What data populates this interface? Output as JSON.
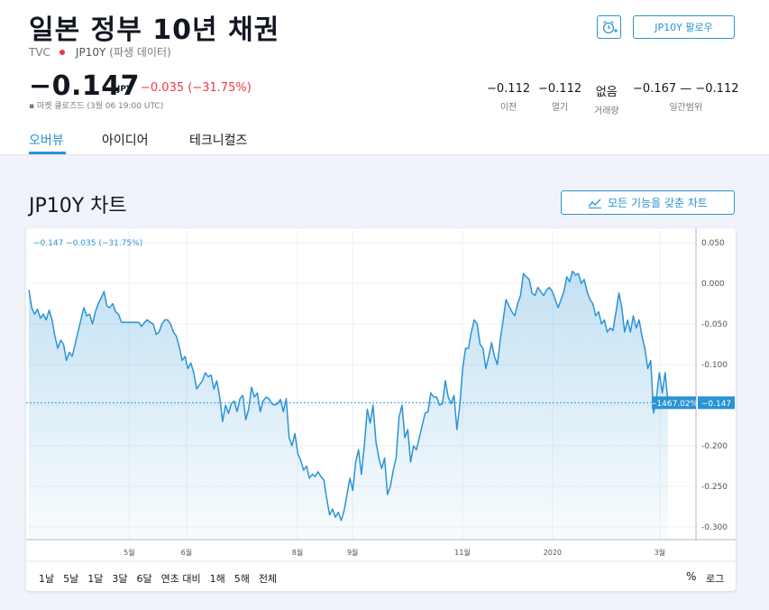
{
  "header": {
    "title": "일본 정부 10년 채권",
    "exchange": "TVC",
    "symbol": "JP10Y",
    "symbol_note": "(파생 데이터)",
    "follow_label": "JP10Y 팔로우",
    "price": "−0.147",
    "currency": "JPY",
    "change": "−0.035 (−31.75%)",
    "market_status": "▪ 마켓 클로즈드 (3월 06 19:00 UTC)",
    "stats": [
      {
        "value": "−0.112",
        "label": "이전"
      },
      {
        "value": "−0.112",
        "label": "열기"
      },
      {
        "value": "없음",
        "label": "거래량"
      },
      {
        "value": "−0.167 — −0.112",
        "label": "일간범위"
      }
    ]
  },
  "tabs": [
    {
      "label": "오버뷰",
      "active": true
    },
    {
      "label": "아이디어",
      "active": false
    },
    {
      "label": "테크니컬즈",
      "active": false
    }
  ],
  "chart_section": {
    "title": "JP10Y 차트",
    "full_chart_label": "모든 기능을 갖춘 차트",
    "legend": "−0.147  −0.035 (−31.75%)",
    "pct_badge": "−1467.02%",
    "last_badge": "−0.147",
    "pct_toggle": "%",
    "log_toggle": "로그",
    "ranges": [
      "1날",
      "5날",
      "1달",
      "3달",
      "6달",
      "연초 대비",
      "1해",
      "5해",
      "전체"
    ]
  },
  "chart_data": {
    "type": "area",
    "title": "",
    "xlabel": "",
    "ylabel": "",
    "ylim": [
      -0.31,
      0.055
    ],
    "yticks": [
      "0.050",
      "0.000",
      "-0.050",
      "-0.100",
      "-0.150",
      "-0.200",
      "-0.250",
      "-0.300"
    ],
    "ytick_values": [
      0.05,
      0.0,
      -0.05,
      -0.1,
      -0.15,
      -0.2,
      -0.25,
      -0.3
    ],
    "xticks": [
      {
        "label": "5월",
        "pos": 0.1505
      },
      {
        "label": "6월",
        "pos": 0.2363
      },
      {
        "label": "8월",
        "pos": 0.4027
      },
      {
        "label": "9월",
        "pos": 0.4854
      },
      {
        "label": "11월",
        "pos": 0.6499
      },
      {
        "label": "2020",
        "pos": 0.7849
      },
      {
        "label": "3월",
        "pos": 0.9457
      }
    ],
    "series": [
      {
        "values": [
          -0.008,
          -0.03,
          -0.038,
          -0.032,
          -0.043,
          -0.038,
          -0.045,
          -0.033,
          -0.045,
          -0.065,
          -0.08,
          -0.07,
          -0.075,
          -0.095,
          -0.085,
          -0.09,
          -0.075,
          -0.06,
          -0.045,
          -0.03,
          -0.04,
          -0.038,
          -0.05,
          -0.035,
          -0.025,
          -0.018,
          -0.01,
          -0.028,
          -0.03,
          -0.025,
          -0.035,
          -0.038,
          -0.048,
          -0.048,
          -0.048,
          -0.048,
          -0.048,
          -0.048,
          -0.048,
          -0.053,
          -0.048,
          -0.045,
          -0.048,
          -0.05,
          -0.063,
          -0.06,
          -0.05,
          -0.045,
          -0.045,
          -0.05,
          -0.06,
          -0.065,
          -0.078,
          -0.095,
          -0.09,
          -0.105,
          -0.098,
          -0.11,
          -0.13,
          -0.125,
          -0.12,
          -0.11,
          -0.115,
          -0.113,
          -0.13,
          -0.12,
          -0.14,
          -0.17,
          -0.15,
          -0.16,
          -0.148,
          -0.145,
          -0.158,
          -0.142,
          -0.138,
          -0.168,
          -0.155,
          -0.128,
          -0.14,
          -0.135,
          -0.158,
          -0.145,
          -0.14,
          -0.142,
          -0.148,
          -0.15,
          -0.148,
          -0.143,
          -0.158,
          -0.142,
          -0.19,
          -0.2,
          -0.185,
          -0.21,
          -0.218,
          -0.23,
          -0.225,
          -0.24,
          -0.235,
          -0.238,
          -0.232,
          -0.238,
          -0.242,
          -0.265,
          -0.285,
          -0.278,
          -0.288,
          -0.282,
          -0.292,
          -0.28,
          -0.26,
          -0.24,
          -0.255,
          -0.22,
          -0.205,
          -0.235,
          -0.2,
          -0.155,
          -0.172,
          -0.15,
          -0.195,
          -0.215,
          -0.228,
          -0.215,
          -0.26,
          -0.25,
          -0.23,
          -0.215,
          -0.165,
          -0.15,
          -0.19,
          -0.18,
          -0.22,
          -0.2,
          -0.205,
          -0.19,
          -0.175,
          -0.16,
          -0.158,
          -0.135,
          -0.14,
          -0.14,
          -0.15,
          -0.148,
          -0.12,
          -0.14,
          -0.148,
          -0.138,
          -0.18,
          -0.15,
          -0.105,
          -0.08,
          -0.08,
          -0.06,
          -0.045,
          -0.05,
          -0.075,
          -0.08,
          -0.105,
          -0.09,
          -0.073,
          -0.09,
          -0.1,
          -0.07,
          -0.045,
          -0.02,
          -0.028,
          -0.035,
          -0.04,
          -0.025,
          -0.015,
          0.012,
          0.008,
          0.005,
          -0.012,
          -0.015,
          -0.005,
          -0.01,
          -0.015,
          -0.008,
          -0.005,
          -0.01,
          -0.02,
          -0.03,
          -0.02,
          -0.01,
          0.008,
          0.002,
          0.015,
          0.01,
          0.012,
          0.0,
          0.005,
          -0.01,
          -0.02,
          -0.025,
          -0.04,
          -0.035,
          -0.05,
          -0.045,
          -0.06,
          -0.055,
          -0.058,
          -0.035,
          -0.012,
          -0.03,
          -0.06,
          -0.045,
          -0.06,
          -0.04,
          -0.055,
          -0.045,
          -0.065,
          -0.08,
          -0.105,
          -0.095,
          -0.16,
          -0.14,
          -0.11,
          -0.135,
          -0.11,
          -0.147
        ]
      }
    ],
    "last_value": -0.147
  }
}
